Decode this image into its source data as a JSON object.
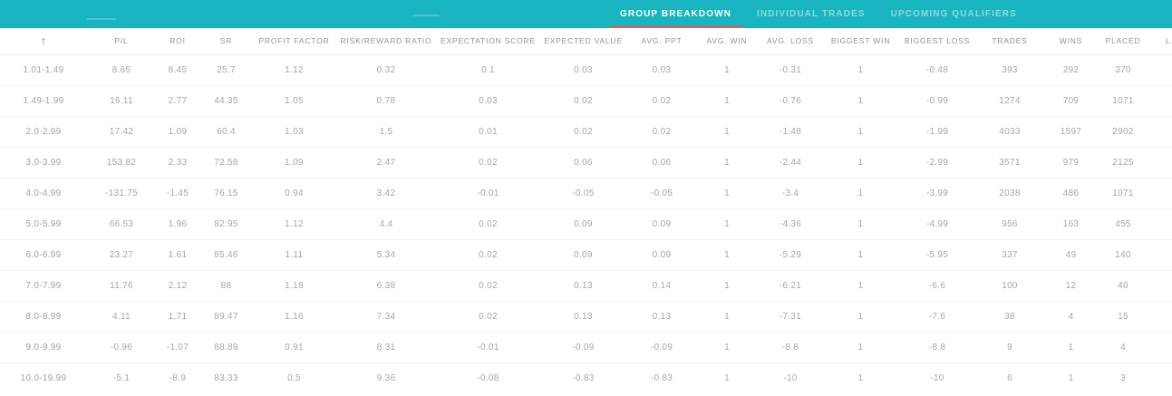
{
  "colors": {
    "topbar_teal": "#18b5c0",
    "active_tab_underline": "#dc6054",
    "header_text": "#8f9296",
    "cell_text": "#a4a6a9"
  },
  "tabs": [
    {
      "label": "GROUP BREAKDOWN",
      "active": true
    },
    {
      "label": "INDIVIDUAL TRADES",
      "active": false
    },
    {
      "label": "UPCOMING QUALIFIERS",
      "active": false
    }
  ],
  "table": {
    "sort_icon": "↑",
    "columns": [
      "P/L",
      "ROI",
      "SR",
      "PROFIT FACTOR",
      "RISK/REWARD RATIO",
      "EXPECTATION SCORE",
      "EXPECTED VALUE",
      "AVG. PPT",
      "AVG. WIN",
      "AVG. LOSS",
      "BIGGEST WIN",
      "BIGGEST LOSS",
      "TRADES",
      "WINS",
      "PLACED"
    ],
    "truncated_last_column": "L",
    "rows": [
      {
        "range": "1.01-1.49",
        "values": [
          "8.65",
          "8.45",
          "25.7",
          "1.12",
          "0.32",
          "0.1",
          "0.03",
          "0.03",
          "1",
          "-0.31",
          "1",
          "-0.48",
          "393",
          "292",
          "370"
        ]
      },
      {
        "range": "1.49-1.99",
        "values": [
          "16.11",
          "2.77",
          "44.35",
          "1.05",
          "0.78",
          "0.03",
          "0.02",
          "0.02",
          "1",
          "-0.76",
          "1",
          "-0.99",
          "1274",
          "709",
          "1071"
        ]
      },
      {
        "range": "2.0-2.99",
        "values": [
          "17.42",
          "1.09",
          "60.4",
          "1.03",
          "1.5",
          "0.01",
          "0.02",
          "0.02",
          "1",
          "-1.48",
          "1",
          "-1.99",
          "4033",
          "1597",
          "2902"
        ]
      },
      {
        "range": "3.0-3.99",
        "values": [
          "153.82",
          "2.33",
          "72.58",
          "1.09",
          "2.47",
          "0.02",
          "0.06",
          "0.06",
          "1",
          "-2.44",
          "1",
          "-2.99",
          "3571",
          "979",
          "2125"
        ]
      },
      {
        "range": "4.0-4.99",
        "values": [
          "-131.75",
          "-1.45",
          "76.15",
          "0.94",
          "3.42",
          "-0.01",
          "-0.05",
          "-0.05",
          "1",
          "-3.4",
          "1",
          "-3.99",
          "2038",
          "486",
          "1071"
        ]
      },
      {
        "range": "5.0-5.99",
        "values": [
          "66.53",
          "1.96",
          "82.95",
          "1.12",
          "4.4",
          "0.02",
          "0.09",
          "0.09",
          "1",
          "-4.36",
          "1",
          "-4.99",
          "956",
          "163",
          "455"
        ]
      },
      {
        "range": "6.0-6.99",
        "values": [
          "23.27",
          "1.61",
          "85.46",
          "1.11",
          "5.34",
          "0.02",
          "0.09",
          "0.09",
          "1",
          "-5.29",
          "1",
          "-5.95",
          "337",
          "49",
          "140"
        ]
      },
      {
        "range": "7.0-7.99",
        "values": [
          "11.76",
          "2.12",
          "88",
          "1.18",
          "6.38",
          "0.02",
          "0.13",
          "0.14",
          "1",
          "-6.21",
          "1",
          "-6.6",
          "100",
          "12",
          "40"
        ]
      },
      {
        "range": "8.0-8.99",
        "values": [
          "4.11",
          "1.71",
          "89.47",
          "1.16",
          "7.34",
          "0.02",
          "0.13",
          "0.13",
          "1",
          "-7.31",
          "1",
          "-7.6",
          "38",
          "4",
          "15"
        ]
      },
      {
        "range": "9.0-9.99",
        "values": [
          "-0.96",
          "-1.07",
          "88.89",
          "0.91",
          "8.31",
          "-0.01",
          "-0.09",
          "-0.09",
          "1",
          "-8.8",
          "1",
          "-8.8",
          "9",
          "1",
          "4"
        ]
      },
      {
        "range": "10.0-19.99",
        "values": [
          "-5.1",
          "-8.9",
          "83.33",
          "0.5",
          "9.36",
          "-0.08",
          "-0.83",
          "-0.83",
          "1",
          "-10",
          "1",
          "-10",
          "6",
          "1",
          "3"
        ]
      }
    ]
  }
}
